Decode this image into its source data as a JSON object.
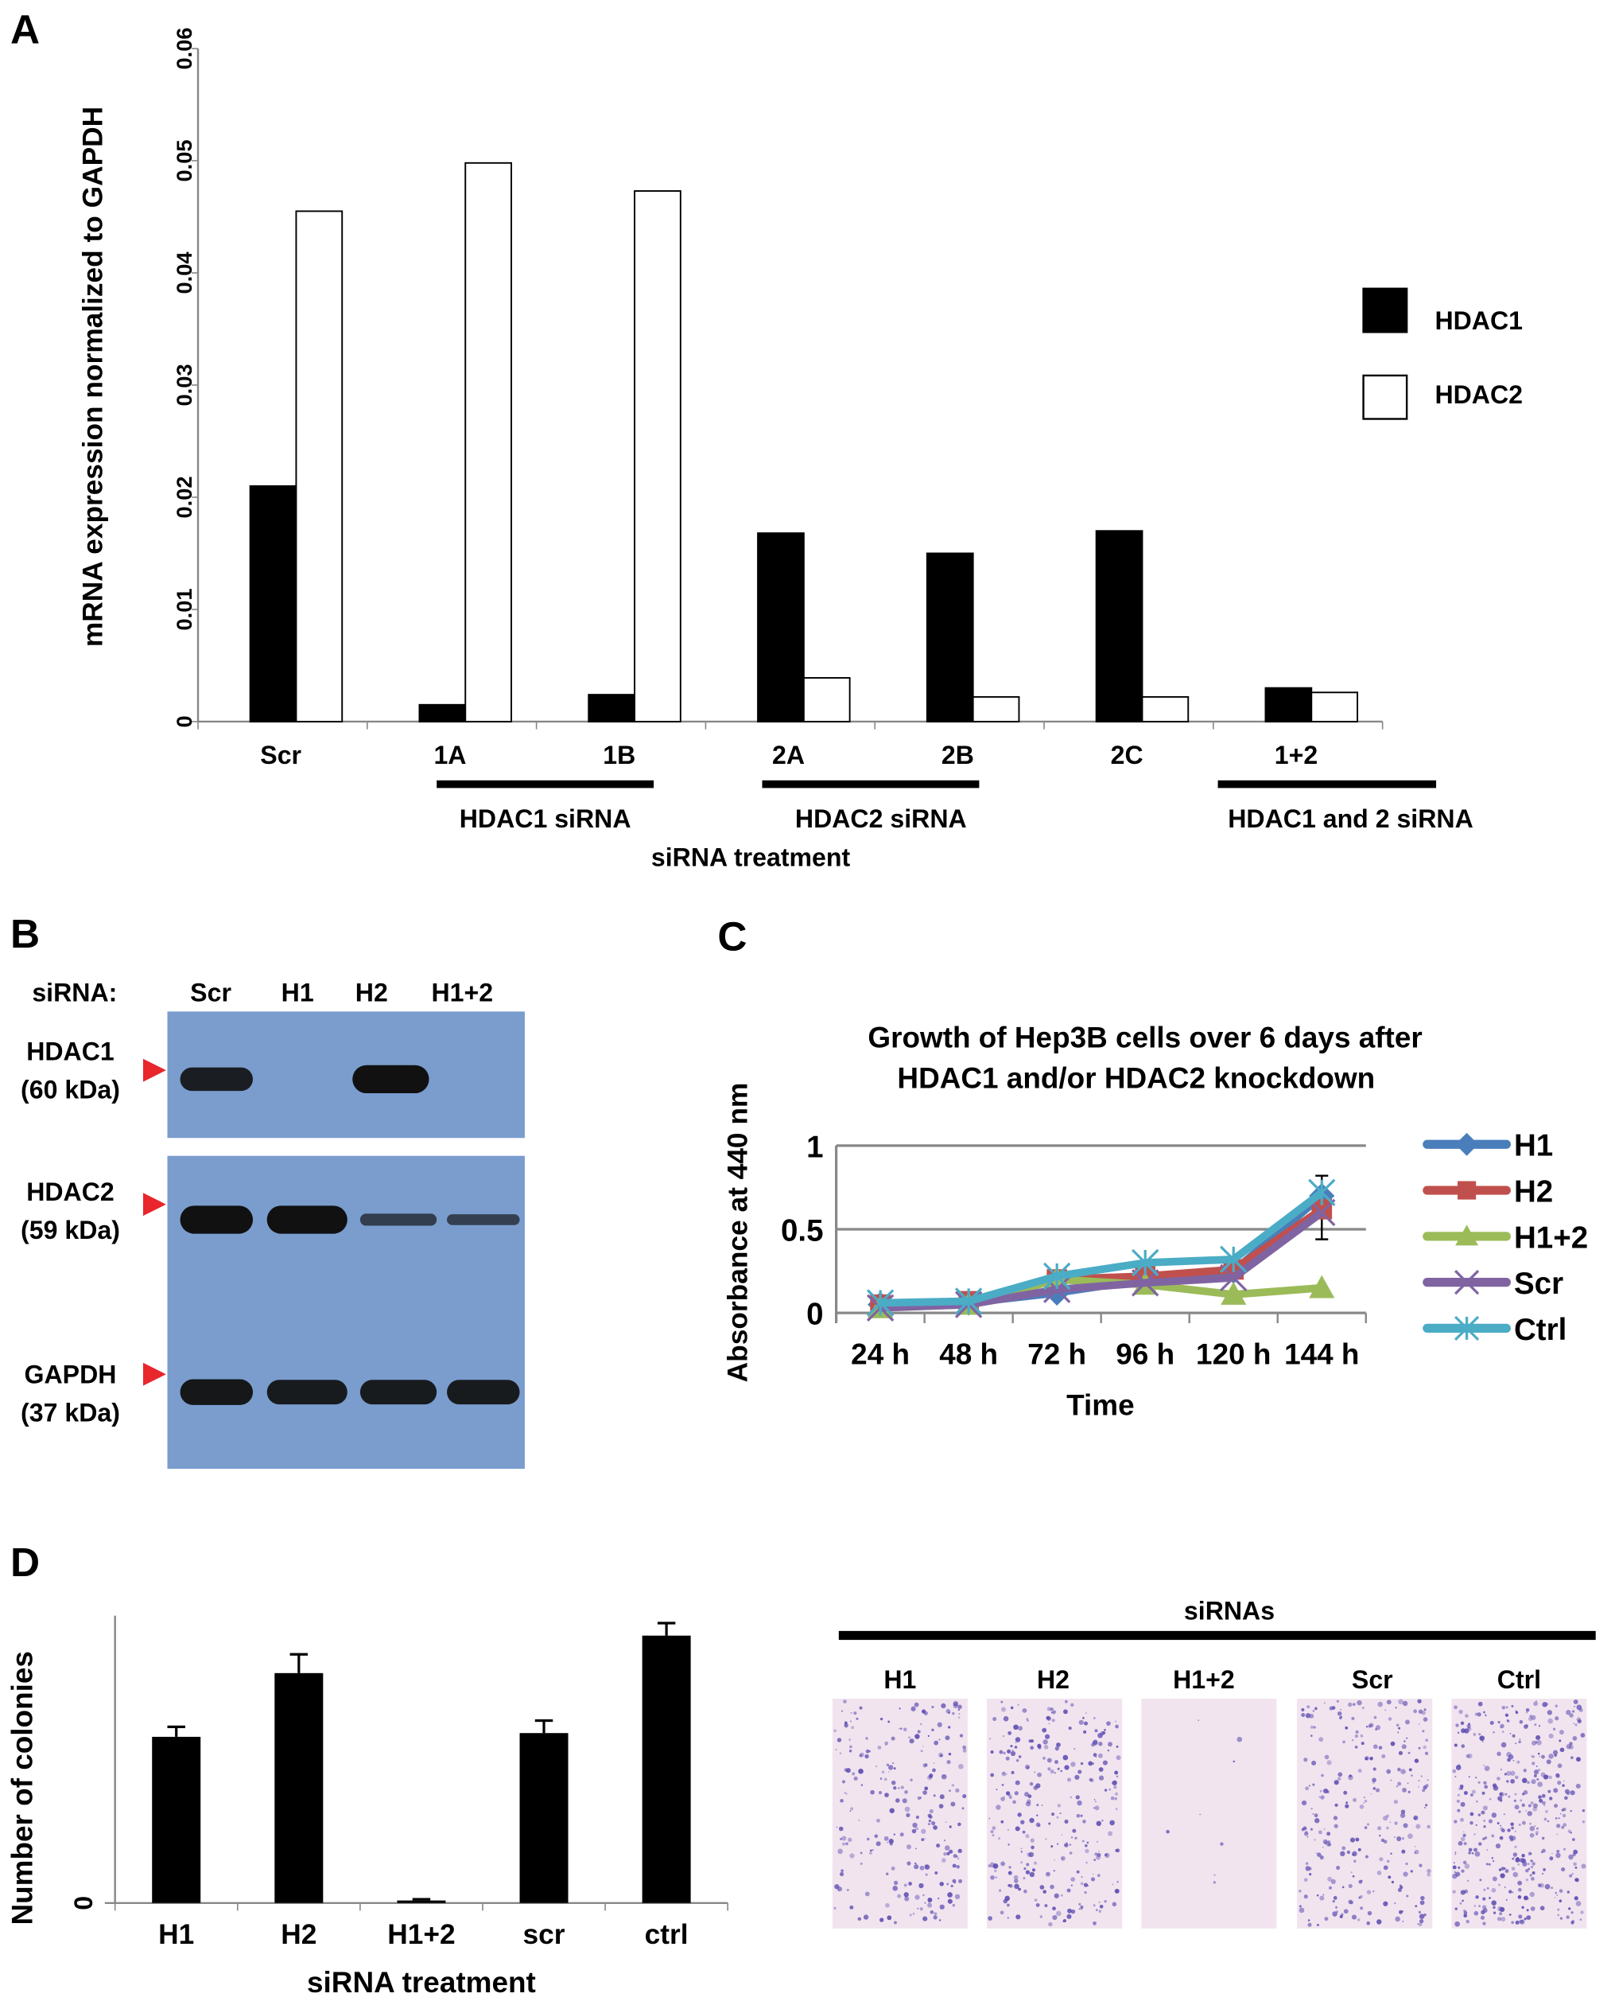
{
  "panels": {
    "a": "A",
    "b": "B",
    "c": "C",
    "d": "D"
  },
  "chart_data": [
    {
      "type": "bar",
      "panel": "A",
      "ylabel": "mRNA expression normalized to GAPDH",
      "xlabel": "siRNA treatment",
      "ylim": [
        0,
        0.06
      ],
      "yticks": [
        "0",
        "0.01",
        "0.02",
        "0.03",
        "0.04",
        "0.05",
        "0.06"
      ],
      "categories": [
        "Scr",
        "1A",
        "1B",
        "2A",
        "2B",
        "2C",
        "1+2"
      ],
      "series": [
        {
          "name": "HDAC1",
          "color": "#000000",
          "values": [
            0.021,
            0.0015,
            0.0024,
            0.0168,
            0.015,
            0.017,
            0.003
          ]
        },
        {
          "name": "HDAC2",
          "color": "#ffffff",
          "values": [
            0.0455,
            0.0498,
            0.0473,
            0.0039,
            0.0022,
            0.0022,
            0.0026
          ]
        }
      ],
      "groups": [
        {
          "label": "HDAC1 siRNA",
          "from": "1A",
          "to": "1B"
        },
        {
          "label": "HDAC2 siRNA",
          "from": "2A",
          "to": "2B"
        },
        {
          "label": "HDAC1 and 2 siRNA",
          "from": "1+2",
          "to": "1+2"
        }
      ],
      "legend": "right"
    },
    {
      "type": "line",
      "panel": "C",
      "title": [
        "Growth of Hep3B cells over 6 days after",
        "HDAC1 and/or HDAC2  knockdown"
      ],
      "ylabel": "Absorbance at 440 nm",
      "xlabel": "Time",
      "ylim": [
        0,
        1
      ],
      "yticks": [
        "0",
        "0.5",
        "1"
      ],
      "categories": [
        "24 h",
        "48 h",
        "72 h",
        "96 h",
        "120 h",
        "144 h"
      ],
      "grid": true,
      "series": [
        {
          "name": "H1",
          "color": "#4a7ebb",
          "marker": "diamond",
          "values": [
            0.05,
            0.06,
            0.12,
            0.2,
            0.25,
            0.7
          ]
        },
        {
          "name": "H2",
          "color": "#c0504d",
          "marker": "square",
          "values": [
            0.05,
            0.07,
            0.2,
            0.22,
            0.26,
            0.62
          ]
        },
        {
          "name": "H1+2",
          "color": "#9bbb59",
          "marker": "triangle",
          "values": [
            0.03,
            0.05,
            0.2,
            0.17,
            0.11,
            0.15
          ]
        },
        {
          "name": "Scr",
          "color": "#8064a2",
          "marker": "x",
          "values": [
            0.03,
            0.05,
            0.14,
            0.18,
            0.21,
            0.6
          ]
        },
        {
          "name": "Ctrl",
          "color": "#4bacc6",
          "marker": "star",
          "values": [
            0.06,
            0.07,
            0.22,
            0.3,
            0.32,
            0.72
          ]
        }
      ],
      "legend": "right"
    },
    {
      "type": "bar",
      "panel": "D",
      "ylabel": "Number of colonies",
      "xlabel": "siRNA treatment",
      "yticks": [
        "0"
      ],
      "ylim": [
        0,
        230
      ],
      "categories": [
        "H1",
        "H2",
        "H1+2",
        "scr",
        "ctrl"
      ],
      "values": [
        133,
        184,
        2,
        136,
        214
      ],
      "errors": [
        8,
        15,
        1,
        10,
        10
      ]
    }
  ],
  "blot": {
    "siRNA_label": "siRNA:",
    "lanes": [
      "Scr",
      "H1",
      "H2",
      "H1+2"
    ],
    "rows": [
      {
        "name": "HDAC1",
        "size": "(60 kDa)",
        "intensity": [
          0.8,
          0,
          1,
          0
        ]
      },
      {
        "name": "HDAC2",
        "size": "(59 kDa)",
        "intensity": [
          1,
          1,
          0.3,
          0.25
        ]
      },
      {
        "name": "GAPDH",
        "size": "(37 kDa)",
        "intensity": [
          0.9,
          0.85,
          0.85,
          0.85
        ]
      }
    ],
    "marker_color": "#e8262c",
    "membrane_color": "#7a9dce"
  },
  "colonies": {
    "header": "siRNAs",
    "plates": [
      {
        "label": "H1",
        "relative_density": 0.6
      },
      {
        "label": "H2",
        "relative_density": 0.7
      },
      {
        "label": "H1+2",
        "relative_density": 0.02
      },
      {
        "label": "Scr",
        "relative_density": 0.65
      },
      {
        "label": "Ctrl",
        "relative_density": 1.0
      }
    ],
    "stain_color": "#5a4ab0"
  }
}
